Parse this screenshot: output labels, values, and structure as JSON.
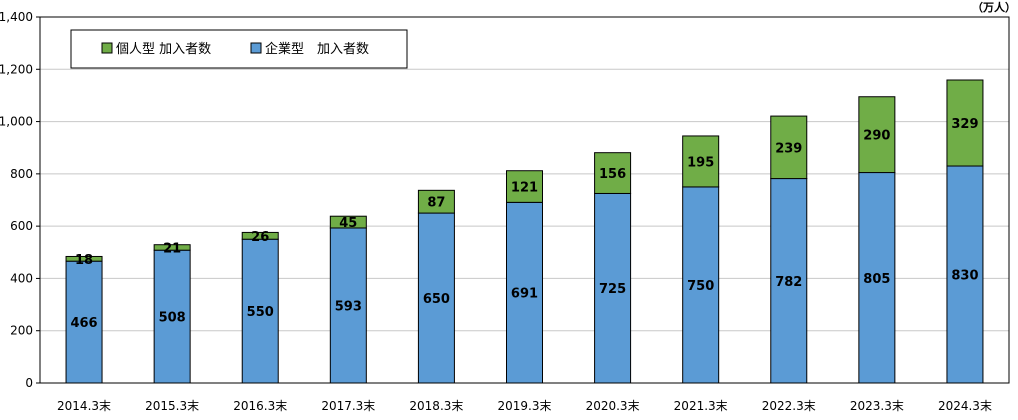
{
  "chart_data": {
    "type": "bar",
    "stacked": true,
    "unit_label": "（万人）",
    "categories": [
      "2014.3末",
      "2015.3末",
      "2016.3末",
      "2017.3末",
      "2018.3末",
      "2019.3末",
      "2020.3末",
      "2021.3末",
      "2022.3末",
      "2023.3末",
      "2024.3末"
    ],
    "series": [
      {
        "name": "企業型　加入者数",
        "color": "#5B9BD5",
        "values": [
          466,
          508,
          550,
          593,
          650,
          691,
          725,
          750,
          782,
          805,
          830
        ]
      },
      {
        "name": "個人型  加入者数",
        "color": "#70AD47",
        "values": [
          18,
          21,
          26,
          45,
          87,
          121,
          156,
          195,
          239,
          290,
          329
        ]
      }
    ],
    "ylim": [
      0,
      1400
    ],
    "yticks": [
      "0",
      "200",
      "400",
      "600",
      "800",
      "1,000",
      "1,200",
      "1,400"
    ],
    "grid": true,
    "legend_position": "top-left"
  }
}
